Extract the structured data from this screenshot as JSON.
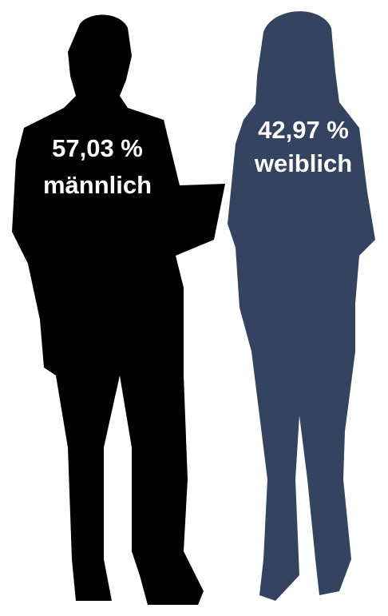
{
  "chart_data": {
    "type": "pictogram",
    "categories": [
      "männlich",
      "weiblich"
    ],
    "values": [
      57.03,
      42.97
    ],
    "value_labels": [
      "57,03 %",
      "42,97 %"
    ],
    "colors": [
      "#000000",
      "#34435f"
    ]
  }
}
